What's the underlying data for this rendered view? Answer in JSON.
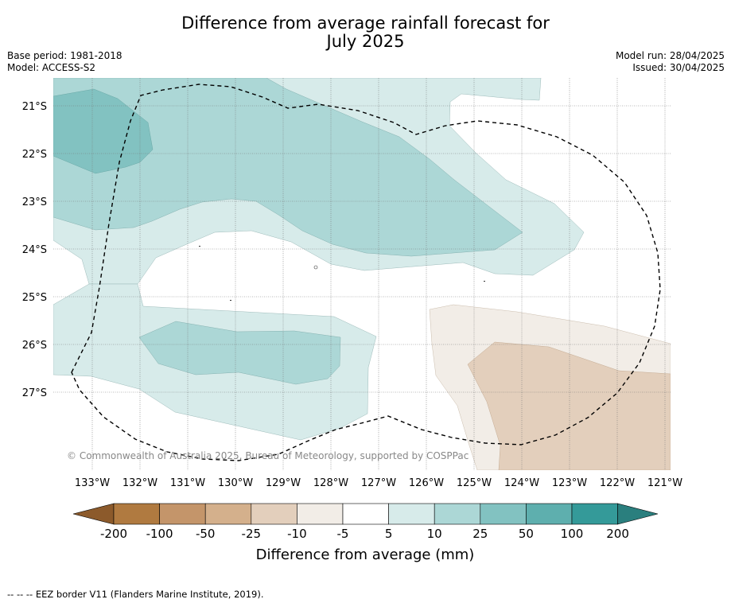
{
  "title_line1": "Difference from average rainfall forecast for",
  "title_line2": "July 2025",
  "meta_left": {
    "base_period": "Base period: 1981-2018",
    "model": "Model: ACCESS-S2"
  },
  "meta_right": {
    "model_run": "Model run: 28/04/2025",
    "issued": "Issued: 30/04/2025"
  },
  "lat_labels": [
    "21°S",
    "22°S",
    "23°S",
    "24°S",
    "25°S",
    "26°S",
    "27°S"
  ],
  "lon_labels": [
    "133°W",
    "132°W",
    "131°W",
    "130°W",
    "129°W",
    "128°W",
    "127°W",
    "126°W",
    "125°W",
    "124°W",
    "123°W",
    "122°W",
    "121°W"
  ],
  "copyright": "© Commonwealth of Australia 2025, Bureau of Meteorology, supported by COSPPac",
  "colorbar": {
    "ticks": [
      "-200",
      "-100",
      "-50",
      "-25",
      "-10",
      "-5",
      "5",
      "10",
      "25",
      "50",
      "100",
      "200"
    ],
    "colors": [
      "#8c5a2b",
      "#b07a40",
      "#c4956a",
      "#d4b08c",
      "#e3cfbc",
      "#f2ede7",
      "#ffffff",
      "#d7ebea",
      "#acd7d6",
      "#82c2c1",
      "#5eafae",
      "#349a99",
      "#2a7f7e"
    ],
    "label": "Difference from average (mm)"
  },
  "footer": "--  --  -- EEZ border V11 (Flanders Marine Institute, 2019)."
}
